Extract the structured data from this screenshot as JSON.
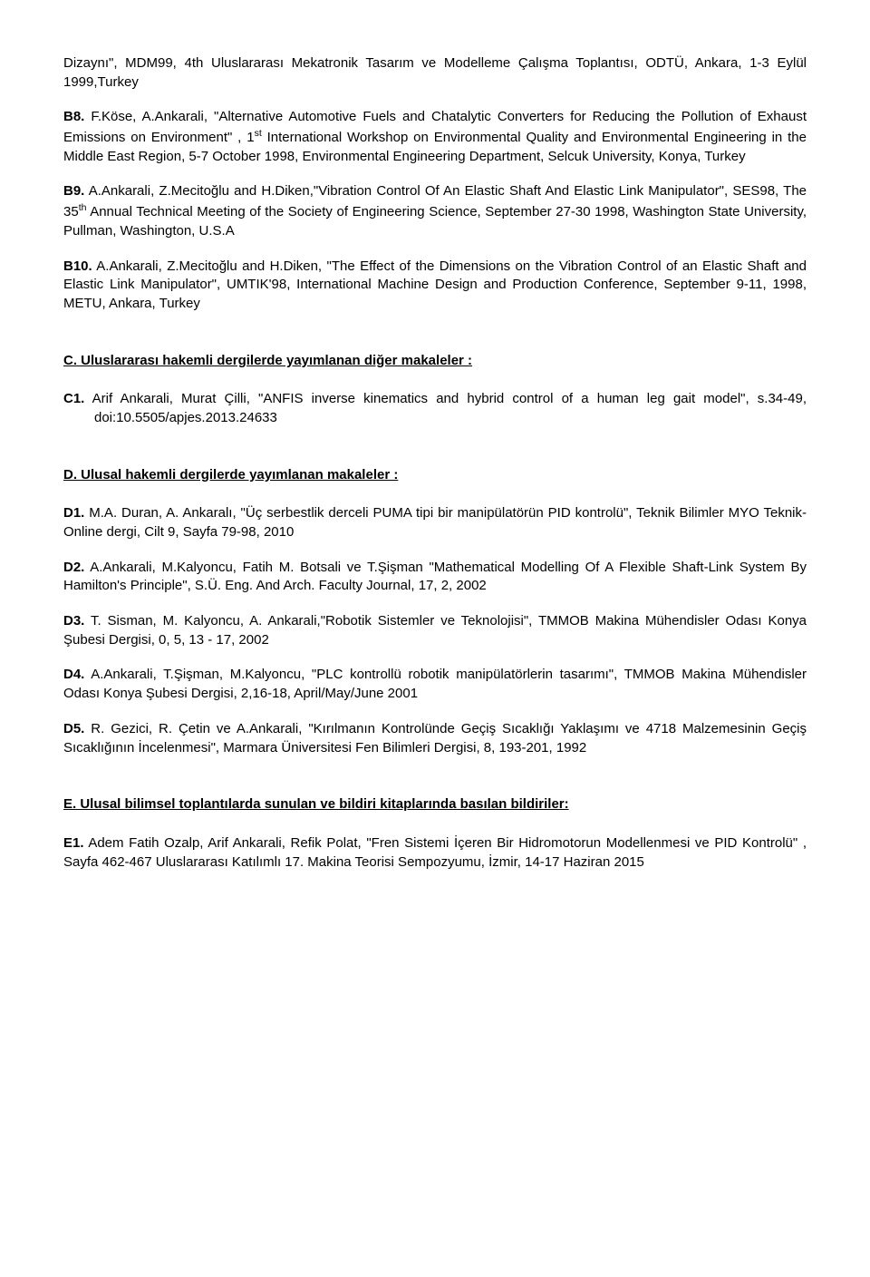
{
  "b7_tail": "Dizaynı\", MDM99, 4th Uluslararası Mekatronik Tasarım ve Modelleme Çalışma Toplantısı, ODTÜ, Ankara, 1-3 Eylül 1999,Turkey",
  "b8": {
    "label": "B8.",
    "text": " F.Köse, A.Ankarali, \"Alternative Automotive Fuels and Chatalytic Converters for Reducing the Pollution of Exhaust Emissions on Environment\" , 1",
    "sup": "st",
    "text2": " International Workshop on Environmental Quality and Environmental Engineering in the Middle East Region, 5-7 October 1998, Environmental Engineering Department, Selcuk University, Konya, Turkey"
  },
  "b9": {
    "label": "B9.",
    "text": "  A.Ankarali, Z.Mecitoğlu and H.Diken,\"Vibration Control Of An Elastic Shaft And Elastic Link Manipulator\", SES98, The  35",
    "sup": "th",
    "text2": "     Annual Technical Meeting of the Society of Engineering Science, September 27-30 1998,   Washington State University, Pullman, Washington, U.S.A"
  },
  "b10": {
    "label": "B10.",
    "text": "  A.Ankarali, Z.Mecitoğlu and H.Diken, \"The Effect of the Dimensions on the Vibration Control of an Elastic Shaft and Elastic Link Manipulator\", UMTIK'98, International Machine Design and Production Conference, September 9-11, 1998, METU, Ankara, Turkey"
  },
  "sectionC_heading": "C. Uluslararası hakemli dergilerde yayımlanan diğer makaleler :",
  "c1": {
    "label": "C1.",
    "text": " Arif Ankarali, Murat Çilli, \"ANFIS inverse kinematics and hybrid control of a human leg gait model\", s.34-49, doi:10.5505/apjes.2013.24633"
  },
  "sectionD_heading": "D. Ulusal hakemli dergilerde yayımlanan makaleler :",
  "d1": {
    "label": "D1.",
    "text": " M.A. Duran, A. Ankaralı, \"Üç serbestlik derceli PUMA tipi bir manipülatörün PID kontrolü\", Teknik Bilimler MYO Teknik-Online dergi, Cilt 9, Sayfa 79-98, 2010"
  },
  "d2": {
    "label": "D2.",
    "text": " A.Ankarali, M.Kalyoncu, Fatih M. Botsali ve T.Şişman \"Mathematical Modelling Of A Flexible Shaft-Link System By Hamilton's Principle\", S.Ü. Eng. And Arch. Faculty Journal, 17, 2, 2002"
  },
  "d3": {
    "label": "D3.",
    "text": " T. Sisman, M. Kalyoncu, A. Ankarali,\"Robotik Sistemler ve Teknolojisi\", TMMOB Makina Mühendisler Odası Konya Şubesi Dergisi, 0, 5, 13 - 17, 2002"
  },
  "d4": {
    "label": "D4.",
    "text": "  A.Ankarali, T.Şişman, M.Kalyoncu, \"PLC kontrollü robotik manipülatörlerin tasarımı\", TMMOB Makina Mühendisler Odası Konya Şubesi Dergisi, 2,16-18, April/May/June 2001"
  },
  "d5": {
    "label": "D5.",
    "text": " R. Gezici, R. Çetin ve A.Ankarali, \"Kırılmanın Kontrolünde Geçiş Sıcaklığı Yaklaşımı ve 4718 Malzemesinin Geçiş Sıcaklığının İncelenmesi\", Marmara Üniversitesi Fen Bilimleri Dergisi, 8, 193-201, 1992"
  },
  "sectionE_heading": "E. Ulusal bilimsel toplantılarda sunulan ve bildiri kitaplarında basılan bildiriler:",
  "e1": {
    "label": "E1.",
    "text": "  Adem Fatih Ozalp, Arif Ankarali, Refik Polat,  \"Fren Sistemi İçeren Bir Hidromotorun Modellenmesi ve PID Kontrolü\" , Sayfa 462-467 Uluslararası Katılımlı 17. Makina Teorisi Sempozyumu, İzmir, 14-17 Haziran 2015"
  }
}
